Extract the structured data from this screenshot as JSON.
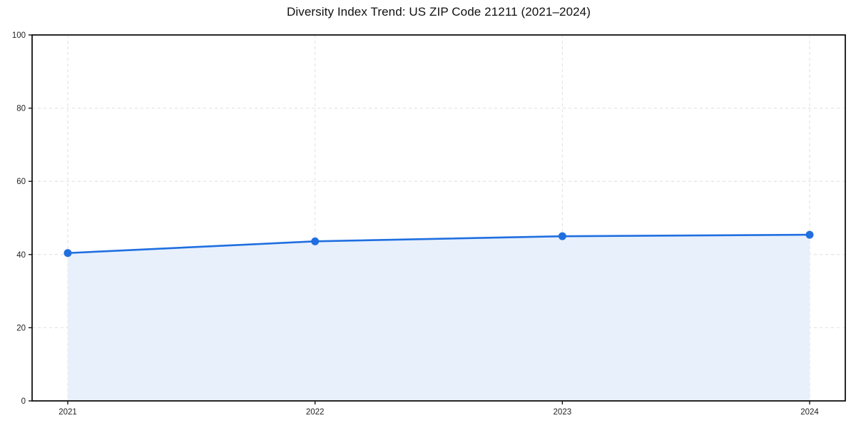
{
  "chart_data": {
    "type": "area",
    "title": "Diversity Index Trend: US ZIP Code 21211 (2021–2024)",
    "categories": [
      "2021",
      "2022",
      "2023",
      "2024"
    ],
    "series": [
      {
        "name": "Diversity Index",
        "values": [
          40.4,
          43.6,
          45.0,
          45.4
        ]
      }
    ],
    "xlabel": "",
    "ylabel": "",
    "ylim": [
      0,
      100
    ],
    "yticks": [
      0,
      20,
      40,
      60,
      80,
      100
    ],
    "grid": "dashed both axes",
    "legend": "none",
    "colors": {
      "line": "#1f6fe0",
      "marker": "#1f6fe0",
      "area_fill": "#e8f0fc",
      "gridline": "#dedede",
      "spine": "#111111",
      "tick_text": "#222222",
      "background": "#ffffff"
    }
  }
}
